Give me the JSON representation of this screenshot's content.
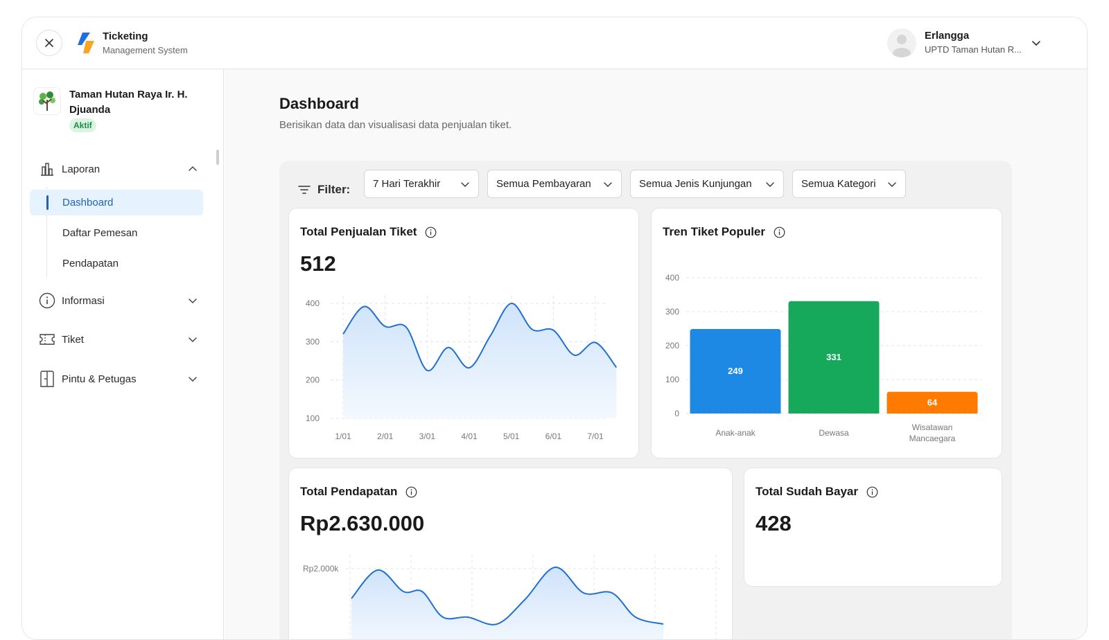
{
  "app": {
    "title": "Ticketing",
    "subtitle": "Management System"
  },
  "user": {
    "name": "Erlangga",
    "org": "UPTD Taman Hutan R..."
  },
  "sidebar": {
    "org_name": "Taman Hutan Raya Ir. H. Djuanda",
    "org_status": "Aktif",
    "groups": [
      {
        "label": "Laporan",
        "icon": "bar-chart-icon",
        "expanded": true
      },
      {
        "label": "Informasi",
        "icon": "info-icon",
        "expanded": false
      },
      {
        "label": "Tiket",
        "icon": "ticket-icon",
        "expanded": false
      },
      {
        "label": "Pintu & Petugas",
        "icon": "door-icon",
        "expanded": false
      }
    ],
    "sub_items": [
      {
        "label": "Dashboard",
        "active": true
      },
      {
        "label": "Daftar Pemesan",
        "active": false
      },
      {
        "label": "Pendapatan",
        "active": false
      }
    ]
  },
  "page": {
    "title": "Dashboard",
    "subtitle": "Berisikan data dan visualisasi data penjualan tiket."
  },
  "filters": {
    "label": "Filter:",
    "period": "7 Hari Terakhir",
    "payment": "Semua Pembayaran",
    "visit_type": "Semua Jenis Kunjungan",
    "category": "Semua Kategori"
  },
  "cards": {
    "ticket_sales": {
      "title": "Total Penjualan Tiket",
      "value": "512"
    },
    "popular_trend": {
      "title": "Tren Tiket Populer"
    },
    "revenue": {
      "title": "Total Pendapatan",
      "value": "Rp2.630.000"
    },
    "paid": {
      "title": "Total Sudah Bayar",
      "value": "428"
    }
  },
  "colors": {
    "accent": "#1c62b8",
    "line": "#1f6fd1",
    "bar_child": "#1e88e5",
    "bar_adult": "#16a85b",
    "bar_foreign": "#ff7a00"
  },
  "chart_data": [
    {
      "type": "area",
      "categories": [
        "1/01",
        "2/01",
        "3/01",
        "4/01",
        "5/01",
        "6/01",
        "7/01"
      ],
      "x": [
        0,
        0.5,
        1,
        1.5,
        2,
        2.5,
        3,
        3.5,
        4,
        4.5,
        5,
        5.5,
        6,
        6.5
      ],
      "values": [
        320,
        392,
        340,
        338,
        225,
        285,
        232,
        315,
        400,
        332,
        330,
        265,
        298,
        233
      ],
      "yticks": [
        100,
        200,
        300,
        400
      ],
      "ylim": [
        100,
        420
      ],
      "grid": true
    },
    {
      "type": "bar",
      "categories": [
        "Anak-anak",
        "Dewasa",
        "Wisatawan Mancaegara"
      ],
      "values": [
        249,
        331,
        64
      ],
      "yticks": [
        0,
        100,
        200,
        300,
        400
      ],
      "ylim": [
        0,
        400
      ],
      "grid": true
    },
    {
      "type": "area",
      "yticks": [
        "Rp2.000k"
      ],
      "grid": true
    }
  ]
}
